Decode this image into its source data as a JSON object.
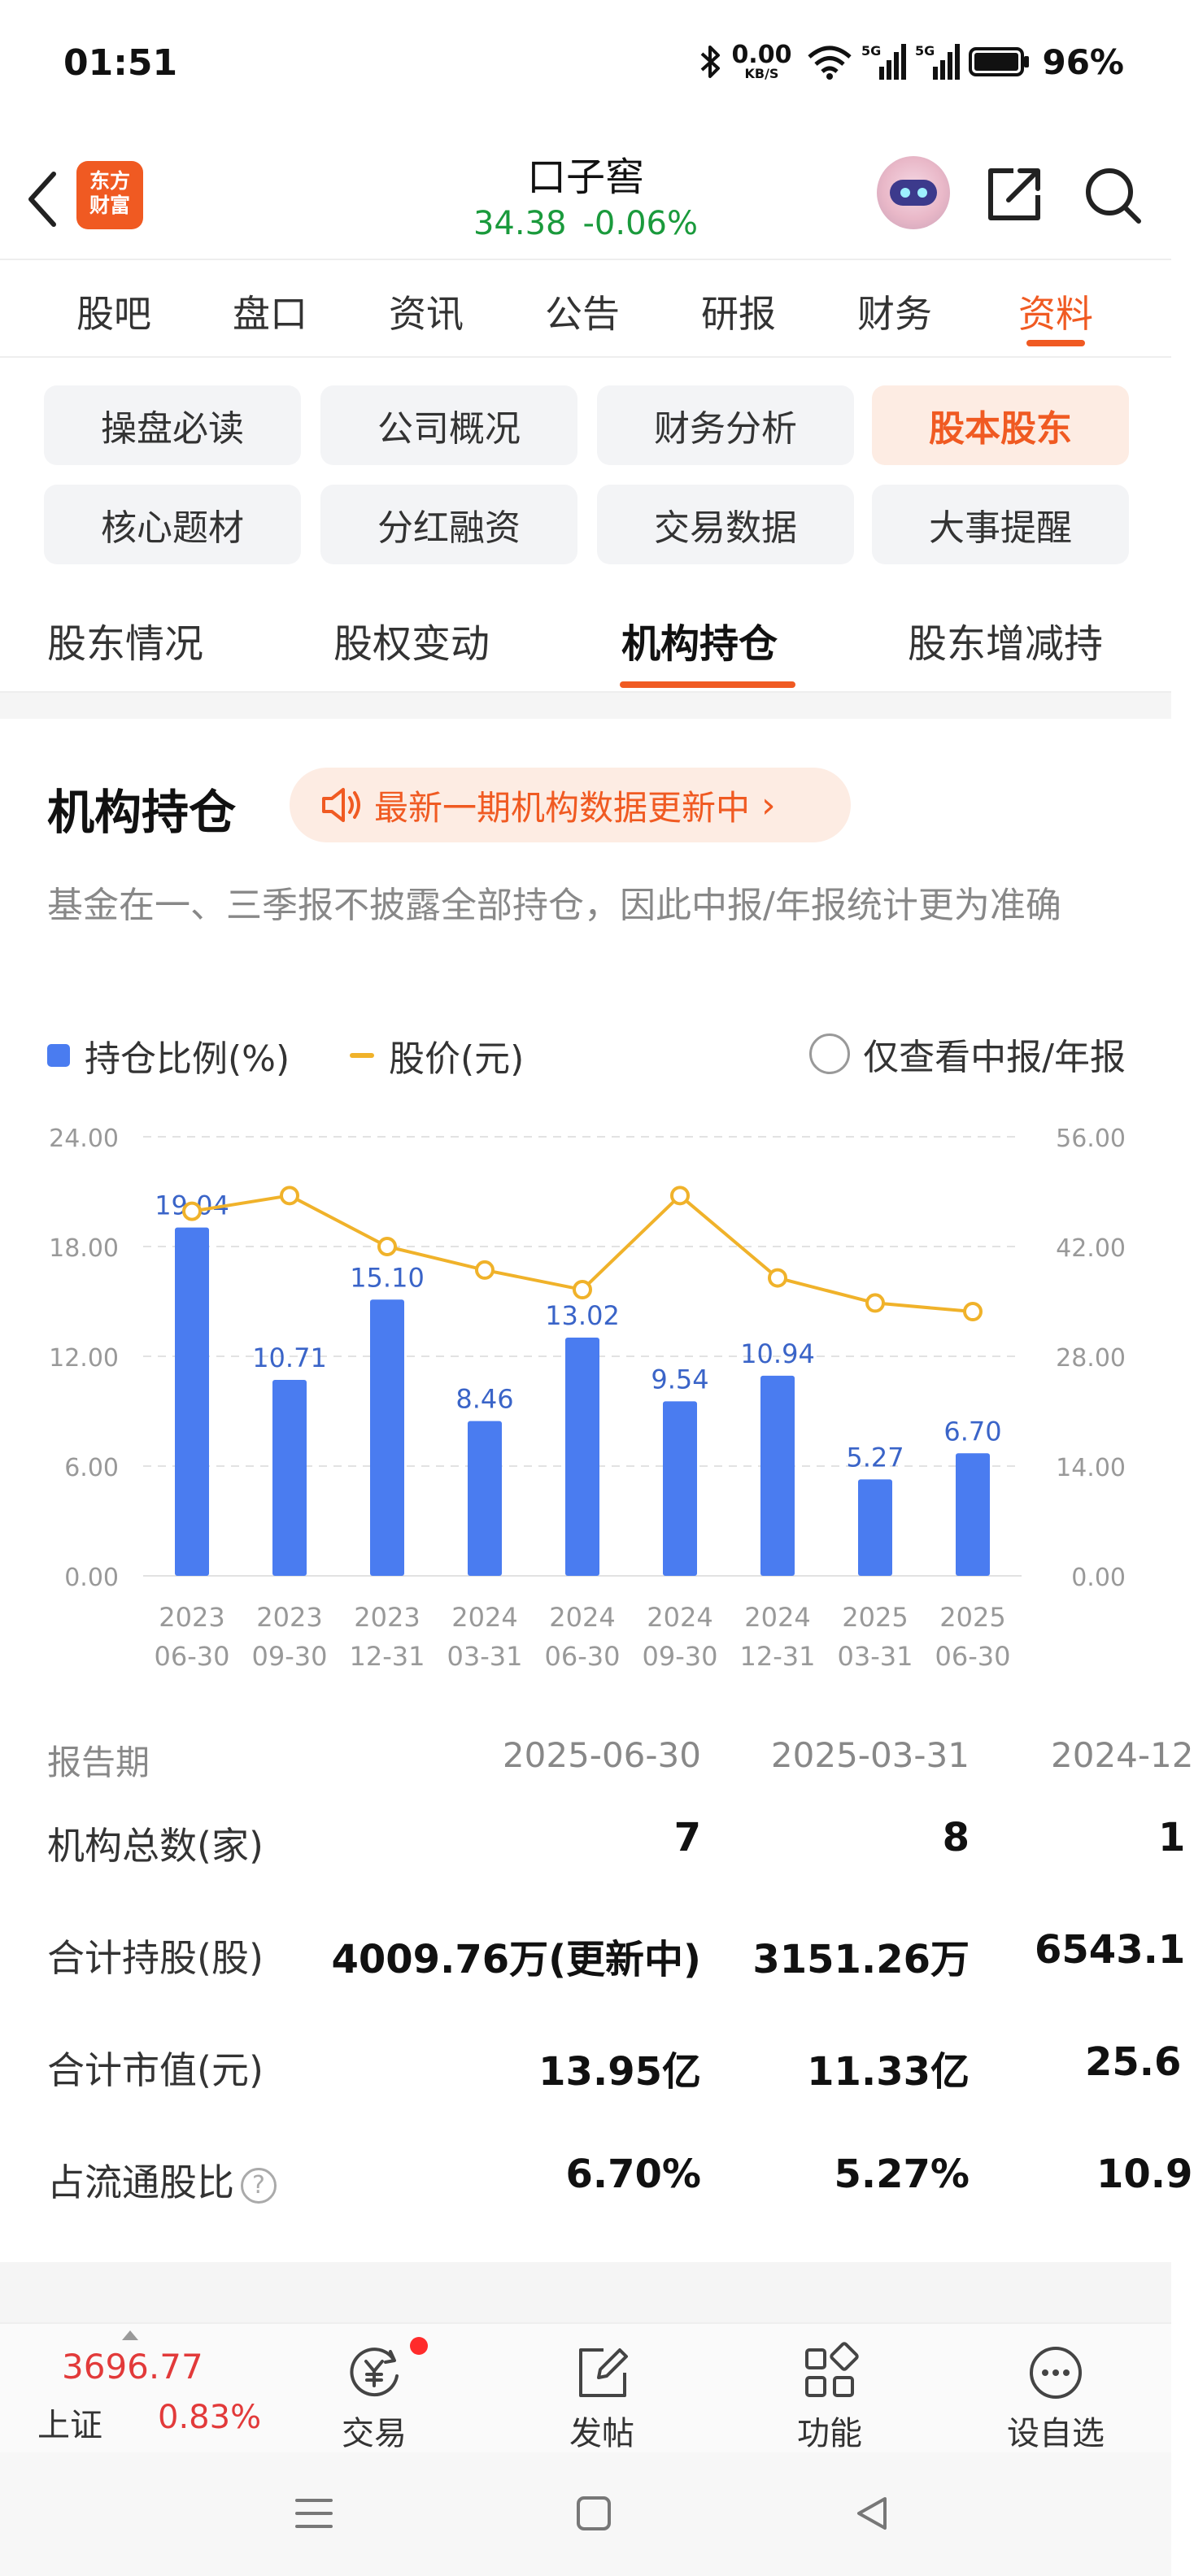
{
  "status_bar": {
    "time": "01:51",
    "net_speed_value": "0.00",
    "net_speed_unit": "KB/S",
    "signal1_label": "5G",
    "signal2_label": "5G",
    "battery_percent": "96%",
    "icons": [
      "bluetooth-icon",
      "wifi-icon",
      "cell-signal-icon",
      "cell-signal-icon",
      "battery-icon"
    ]
  },
  "header": {
    "app_logo_line1": "东方",
    "app_logo_line2": "财富",
    "stock_name": "口子窖",
    "price": "34.38",
    "change_pct": "-0.06%"
  },
  "main_tabs": [
    {
      "label": "股吧",
      "active": false
    },
    {
      "label": "盘口",
      "active": false
    },
    {
      "label": "资讯",
      "active": false
    },
    {
      "label": "公告",
      "active": false
    },
    {
      "label": "研报",
      "active": false
    },
    {
      "label": "财务",
      "active": false
    },
    {
      "label": "资料",
      "active": true
    }
  ],
  "sub_categories": [
    {
      "label": "操盘必读",
      "active": false
    },
    {
      "label": "公司概况",
      "active": false
    },
    {
      "label": "财务分析",
      "active": false
    },
    {
      "label": "股本股东",
      "active": true
    },
    {
      "label": "核心题材",
      "active": false
    },
    {
      "label": "分红融资",
      "active": false
    },
    {
      "label": "交易数据",
      "active": false
    },
    {
      "label": "大事提醒",
      "active": false
    }
  ],
  "secondary_tabs": [
    {
      "label": "股东情况",
      "active": false
    },
    {
      "label": "股权变动",
      "active": false
    },
    {
      "label": "机构持仓",
      "active": true
    },
    {
      "label": "股东增减持",
      "active": false
    }
  ],
  "section": {
    "title": "机构持仓",
    "update_notice": "最新一期机构数据更新中",
    "note": "基金在一、三季报不披露全部持仓，因此中报/年报统计更为准确",
    "legend_bar": "持仓比例(%)",
    "legend_line": "股价(元)",
    "filter_label": "仅查看中报/年报"
  },
  "colors": {
    "accent": "#f05a22",
    "bar": "#4a7cf0",
    "line": "#f0b22a",
    "up": "#e23a3a",
    "down": "#1a9a3c"
  },
  "chart_data": {
    "type": "bar",
    "categories": [
      "2023-06-30",
      "2023-09-30",
      "2023-12-31",
      "2024-03-31",
      "2024-06-30",
      "2024-09-30",
      "2024-12-31",
      "2025-03-31",
      "2025-06-30"
    ],
    "category_lines": [
      [
        "2023",
        "06-30"
      ],
      [
        "2023",
        "09-30"
      ],
      [
        "2023",
        "12-31"
      ],
      [
        "2024",
        "03-31"
      ],
      [
        "2024",
        "06-30"
      ],
      [
        "2024",
        "09-30"
      ],
      [
        "2024",
        "12-31"
      ],
      [
        "2025",
        "03-31"
      ],
      [
        "2025",
        "06-30"
      ]
    ],
    "series": [
      {
        "name": "持仓比例(%)",
        "type": "bar",
        "axis": "left",
        "values": [
          19.04,
          10.71,
          15.1,
          8.46,
          13.02,
          9.54,
          10.94,
          5.27,
          6.7
        ],
        "labels": [
          "19.04",
          "10.71",
          "15.10",
          "8.46",
          "13.02",
          "9.54",
          "10.94",
          "5.27",
          "6.70"
        ]
      },
      {
        "name": "股价(元)",
        "type": "line",
        "axis": "right",
        "values": [
          46.5,
          48.5,
          42.0,
          39.0,
          36.5,
          48.5,
          38.0,
          34.8,
          33.7
        ]
      }
    ],
    "y_left_ticks": [
      "24.00",
      "18.00",
      "12.00",
      "6.00",
      "0.00"
    ],
    "y_right_ticks": [
      "56.00",
      "42.00",
      "28.00",
      "14.00",
      "0.00"
    ],
    "ylim_left": [
      0,
      24
    ],
    "ylim_right": [
      0,
      56
    ],
    "grid": true,
    "legend": "top-left"
  },
  "table": {
    "header_label": "报告期",
    "periods": [
      "2025-06-30",
      "2025-03-31",
      "2024-12"
    ],
    "rows": [
      {
        "label": "机构总数(家)",
        "values": [
          "7",
          "8",
          "1"
        ]
      },
      {
        "label": "合计持股(股)",
        "values": [
          "4009.76万(更新中)",
          "3151.26万",
          "6543.1"
        ]
      },
      {
        "label": "合计市值(元)",
        "values": [
          "13.95亿",
          "11.33亿",
          "25.6"
        ]
      },
      {
        "label": "占流通股比",
        "values": [
          "6.70%",
          "5.27%",
          "10.9"
        ]
      }
    ]
  },
  "bottom_bar": {
    "index_value": "3696.77",
    "index_name": "上证",
    "index_change": "0.83%",
    "nav": [
      {
        "label": "交易",
        "icon": "trade-yen-icon",
        "badge": true
      },
      {
        "label": "发帖",
        "icon": "compose-icon",
        "badge": false
      },
      {
        "label": "功能",
        "icon": "grid-apps-icon",
        "badge": false
      },
      {
        "label": "设自选",
        "icon": "more-dots-icon",
        "badge": false
      }
    ]
  }
}
